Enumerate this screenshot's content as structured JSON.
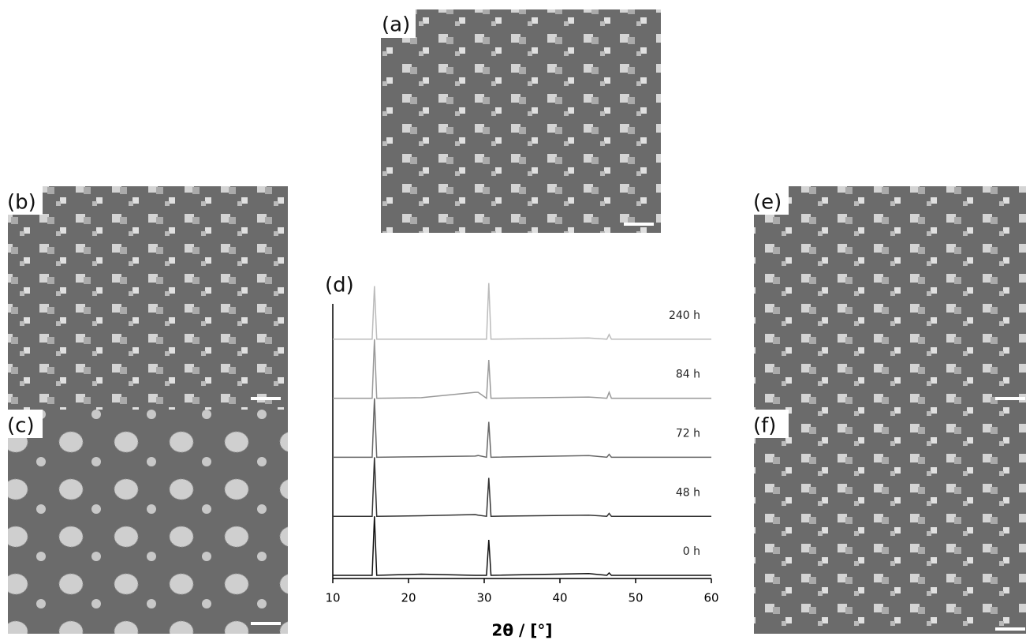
{
  "panels": [
    {
      "label": "(a)"
    },
    {
      "label": "(b)"
    },
    {
      "label": "(c)"
    },
    {
      "label": "(d)"
    },
    {
      "label": "(e)"
    },
    {
      "label": "(f)"
    }
  ],
  "chart_data": {
    "type": "line",
    "xlabel": "2θ / [°]",
    "x": [
      10,
      15.2,
      15.5,
      15.8,
      21.7,
      28.8,
      29.2,
      30.3,
      30.6,
      30.9,
      43.8,
      46.2,
      46.5,
      46.8,
      60
    ],
    "xlim": [
      10,
      60
    ],
    "xticks": [
      10,
      20,
      30,
      40,
      50,
      60
    ],
    "series": [
      {
        "name": "0 h",
        "color": "#111111",
        "values": [
          0,
          0,
          1.0,
          0,
          0.02,
          0,
          0,
          0,
          0.6,
          0,
          0.03,
          0,
          0.04,
          0,
          0
        ]
      },
      {
        "name": "48 h",
        "color": "#333333",
        "values": [
          0,
          0,
          1.0,
          0,
          0.01,
          0.03,
          0.02,
          0,
          0.65,
          0,
          0.02,
          0,
          0.05,
          0,
          0
        ]
      },
      {
        "name": "72 h",
        "color": "#666666",
        "values": [
          0,
          0,
          1.0,
          0,
          0.01,
          0.02,
          0.03,
          0,
          0.6,
          0,
          0.03,
          0,
          0.05,
          0,
          0
        ]
      },
      {
        "name": "84 h",
        "color": "#999999",
        "values": [
          0,
          0,
          1.0,
          0,
          0.01,
          0.1,
          0.1,
          0,
          0.65,
          0,
          0.02,
          0,
          0.1,
          0,
          0
        ]
      },
      {
        "name": "240 h",
        "color": "#bbbbbb",
        "values": [
          0,
          0,
          0.9,
          0,
          0,
          0,
          0,
          0,
          0.95,
          0,
          0.02,
          0,
          0.08,
          0,
          0
        ]
      }
    ]
  }
}
